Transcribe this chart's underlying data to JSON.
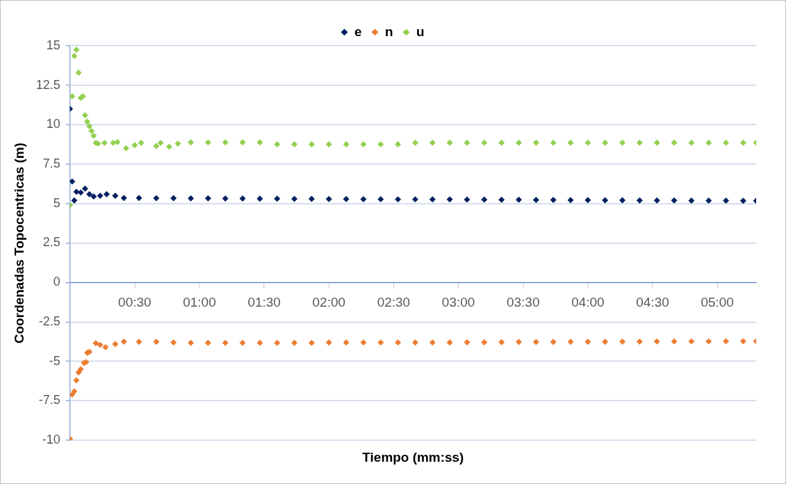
{
  "chart_data": {
    "type": "scatter",
    "xlabel": "Tiempo (mm:ss)",
    "ylabel": "Coordenadas Topocentricas (m)",
    "marker": "diamond",
    "legend": "top",
    "grid": "y",
    "xlim": [
      0,
      318
    ],
    "xticks": [
      {
        "value": 30,
        "label": "00:30"
      },
      {
        "value": 60,
        "label": "01:00"
      },
      {
        "value": 90,
        "label": "01:30"
      },
      {
        "value": 120,
        "label": "02:00"
      },
      {
        "value": 150,
        "label": "02:30"
      },
      {
        "value": 180,
        "label": "03:00"
      },
      {
        "value": 210,
        "label": "03:30"
      },
      {
        "value": 240,
        "label": "04:00"
      },
      {
        "value": 270,
        "label": "04:30"
      },
      {
        "value": 300,
        "label": "05:00"
      }
    ],
    "ylim": [
      -10,
      15
    ],
    "yticks": [
      -10,
      -7.5,
      -5,
      -2.5,
      0,
      2.5,
      5,
      7.5,
      10,
      12.5,
      15
    ],
    "series": [
      {
        "name": "e",
        "color": "#002060",
        "x": [
          0,
          1,
          2,
          3,
          5,
          7,
          9,
          11,
          14,
          17,
          21,
          25,
          32,
          40,
          48,
          56,
          64,
          72,
          80,
          88,
          96,
          104,
          112,
          120,
          128,
          136,
          144,
          152,
          160,
          168,
          176,
          184,
          192,
          200,
          208,
          216,
          224,
          232,
          240,
          248,
          256,
          264,
          272,
          280,
          288,
          296,
          304,
          312,
          318
        ],
        "values": [
          11.0,
          6.4,
          5.2,
          5.75,
          5.7,
          5.95,
          5.6,
          5.45,
          5.5,
          5.6,
          5.5,
          5.35,
          5.35,
          5.34,
          5.34,
          5.33,
          5.33,
          5.32,
          5.32,
          5.31,
          5.31,
          5.3,
          5.3,
          5.29,
          5.29,
          5.28,
          5.28,
          5.27,
          5.27,
          5.26,
          5.26,
          5.25,
          5.25,
          5.24,
          5.24,
          5.23,
          5.23,
          5.22,
          5.22,
          5.21,
          5.21,
          5.2,
          5.2,
          5.2,
          5.19,
          5.19,
          5.19,
          5.18,
          5.18
        ]
      },
      {
        "name": "n",
        "color": "#ed7d31",
        "x": [
          0,
          1,
          2,
          3,
          4,
          5,
          6.5,
          7.5,
          8,
          9,
          12,
          14,
          16.5,
          21,
          25,
          32,
          40,
          48,
          56,
          64,
          72,
          80,
          88,
          96,
          104,
          112,
          120,
          128,
          136,
          144,
          152,
          160,
          168,
          176,
          184,
          192,
          200,
          208,
          216,
          224,
          232,
          240,
          248,
          256,
          264,
          272,
          280,
          288,
          296,
          304,
          312,
          318
        ],
        "values": [
          -9.9,
          -7.1,
          -6.9,
          -6.2,
          -5.7,
          -5.5,
          -5.1,
          -5.05,
          -4.45,
          -4.4,
          -3.85,
          -3.95,
          -4.1,
          -3.9,
          -3.75,
          -3.76,
          -3.76,
          -3.8,
          -3.82,
          -3.82,
          -3.82,
          -3.82,
          -3.82,
          -3.82,
          -3.82,
          -3.82,
          -3.8,
          -3.8,
          -3.8,
          -3.8,
          -3.8,
          -3.8,
          -3.8,
          -3.8,
          -3.79,
          -3.79,
          -3.78,
          -3.77,
          -3.77,
          -3.77,
          -3.76,
          -3.76,
          -3.76,
          -3.75,
          -3.75,
          -3.74,
          -3.74,
          -3.73,
          -3.73,
          -3.72,
          -3.72,
          -3.72
        ]
      },
      {
        "name": "u",
        "color": "#92d050",
        "x": [
          0,
          1,
          2,
          3,
          4,
          5,
          6,
          7,
          8,
          9,
          10,
          11,
          12,
          13,
          16,
          20,
          22,
          26,
          30,
          33,
          40,
          42,
          46,
          50,
          56,
          64,
          72,
          80,
          88,
          96,
          104,
          112,
          120,
          128,
          136,
          144,
          152,
          160,
          168,
          176,
          184,
          192,
          200,
          208,
          216,
          224,
          232,
          240,
          248,
          256,
          264,
          272,
          280,
          288,
          296,
          304,
          312,
          318
        ],
        "values": [
          4.9,
          11.8,
          14.35,
          14.75,
          13.3,
          11.7,
          11.8,
          10.6,
          10.2,
          9.9,
          9.6,
          9.3,
          8.85,
          8.8,
          8.85,
          8.85,
          8.9,
          8.5,
          8.7,
          8.85,
          8.65,
          8.85,
          8.6,
          8.8,
          8.88,
          8.88,
          8.88,
          8.88,
          8.88,
          8.76,
          8.76,
          8.76,
          8.76,
          8.76,
          8.76,
          8.76,
          8.76,
          8.86,
          8.86,
          8.86,
          8.86,
          8.86,
          8.86,
          8.86,
          8.86,
          8.86,
          8.86,
          8.86,
          8.86,
          8.86,
          8.86,
          8.86,
          8.86,
          8.86,
          8.86,
          8.86,
          8.86,
          8.86
        ]
      }
    ]
  }
}
